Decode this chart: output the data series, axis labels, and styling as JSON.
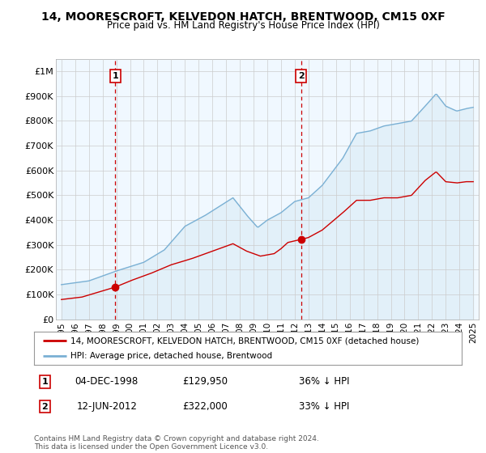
{
  "title": "14, MOORESCROFT, KELVEDON HATCH, BRENTWOOD, CM15 0XF",
  "subtitle": "Price paid vs. HM Land Registry's House Price Index (HPI)",
  "ylabel_values": [
    "£0",
    "£100K",
    "£200K",
    "£300K",
    "£400K",
    "£500K",
    "£600K",
    "£700K",
    "£800K",
    "£900K",
    "£1M"
  ],
  "ylim": [
    0,
    1050000
  ],
  "yticks": [
    0,
    100000,
    200000,
    300000,
    400000,
    500000,
    600000,
    700000,
    800000,
    900000,
    1000000
  ],
  "transaction1": {
    "date_num": 1998.92,
    "price": 129950,
    "label": "1",
    "date_str": "04-DEC-1998",
    "price_str": "£129,950",
    "pct": "36% ↓ HPI"
  },
  "transaction2": {
    "date_num": 2012.46,
    "price": 322000,
    "label": "2",
    "date_str": "12-JUN-2012",
    "price_str": "£322,000",
    "pct": "33% ↓ HPI"
  },
  "legend_red": "14, MOORESCROFT, KELVEDON HATCH, BRENTWOOD, CM15 0XF (detached house)",
  "legend_blue": "HPI: Average price, detached house, Brentwood",
  "footer": "Contains HM Land Registry data © Crown copyright and database right 2024.\nThis data is licensed under the Open Government Licence v3.0.",
  "red_color": "#cc0000",
  "blue_color": "#7ab0d4",
  "blue_fill": "#ddeef7",
  "dashed_color": "#cc0000",
  "background_color": "#ffffff",
  "plot_bg_color": "#f0f8ff",
  "grid_color": "#cccccc"
}
